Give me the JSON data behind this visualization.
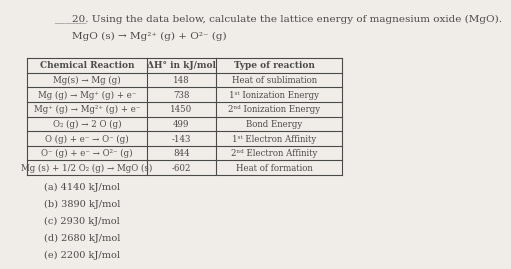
{
  "title_prefix": "20. Using the data below, calculate the lattice energy of magnesium oxide (MgO).",
  "equation": "MgO (s) → Mg²⁺ (g) + O²⁻ (g)",
  "table_headers": [
    "Chemical Reaction",
    "ΔH° in kJ/mol",
    "Type of reaction"
  ],
  "table_rows": [
    [
      "Mg(s) → Mg (g)",
      "148",
      "Heat of sublimation"
    ],
    [
      "Mg (g) → Mg⁺ (g) + e⁻",
      "738",
      "1ˢᵗ Ionization Energy"
    ],
    [
      "Mg⁺ (g) → Mg²⁺ (g) + e⁻",
      "1450",
      "2ⁿᵈ Ionization Energy"
    ],
    [
      "O₂ (g) → 2 O (g)",
      "499",
      "Bond Energy"
    ],
    [
      "O (g) + e⁻ → O⁻ (g)",
      "-143",
      "1ˢᵗ Electron Affinity"
    ],
    [
      "O⁻ (g) + e⁻ → O²⁻ (g)",
      "844",
      "2ⁿᵈ Electron Affinity"
    ],
    [
      "Mg (s) + 1/2 O₂ (g) → MgO (s)",
      "-602",
      "Heat of formation"
    ]
  ],
  "choices": [
    "(a) 4140 kJ/mol",
    "(b) 3890 kJ/mol",
    "(c) 2930 kJ/mol",
    "(d) 2680 kJ/mol",
    "(e) 2200 kJ/mol"
  ],
  "bg_color": "#f0ede8",
  "line_color": "#4a4a4a",
  "font_size_title": 7.5,
  "font_size_table": 6.5,
  "font_size_choices": 7.0
}
